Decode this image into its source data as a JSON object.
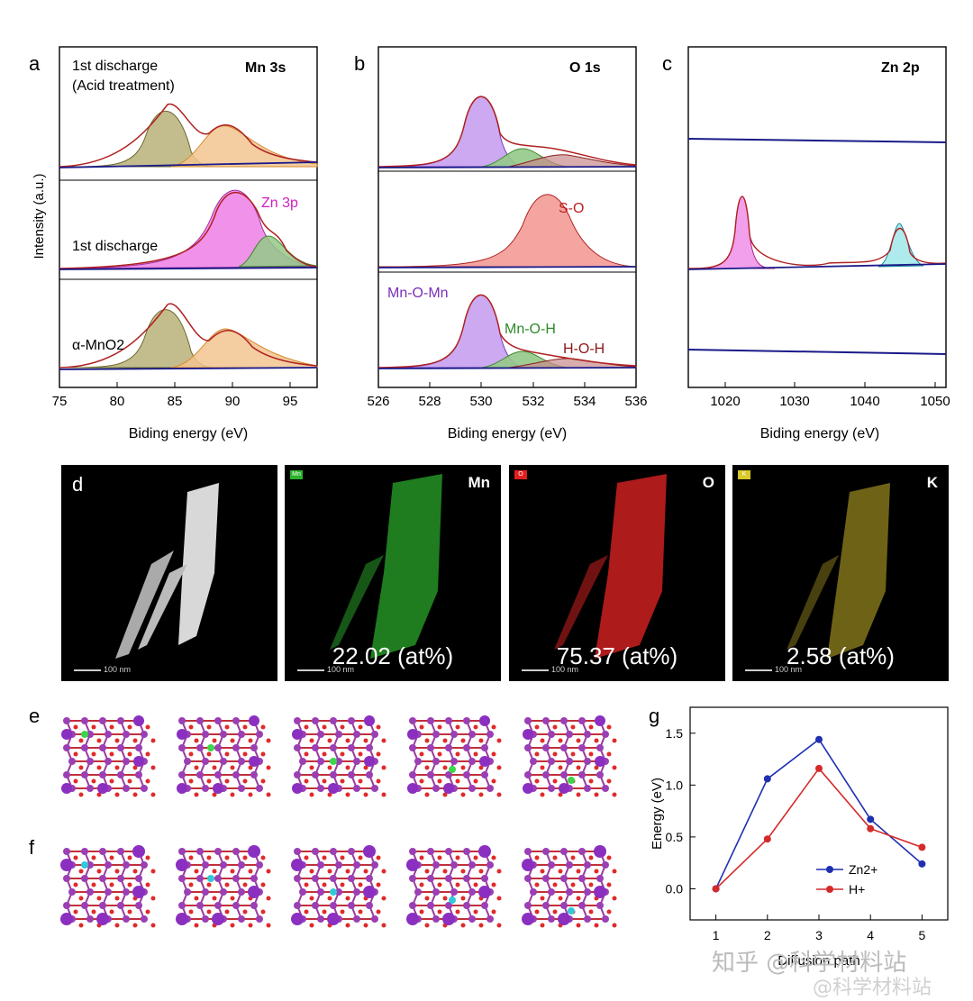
{
  "panels": {
    "a": {
      "letter": "a",
      "title": "Mn 3s",
      "ylabel": "Intensity (a.u.)",
      "xlabel": "Biding energy (eV)",
      "ticks": [
        "75",
        "80",
        "85",
        "90",
        "95"
      ],
      "labels": {
        "top_l1": "1st discharge",
        "top_l2": "(Acid treatment)",
        "mid": "1st discharge",
        "mid_peak": "Zn 3p",
        "bot": "α-MnO2"
      }
    },
    "b": {
      "letter": "b",
      "title": "O 1s",
      "xlabel": "Biding energy (eV)",
      "ticks": [
        "526",
        "528",
        "530",
        "532",
        "534",
        "536"
      ],
      "labels": {
        "so": "S-O",
        "mnomn": "Mn-O-Mn",
        "mnoh": "Mn-O-H",
        "hoh": "H-O-H"
      }
    },
    "c": {
      "letter": "c",
      "title": "Zn 2p",
      "xlabel": "Biding energy (eV)",
      "ticks": [
        "1020",
        "1030",
        "1040",
        "1050"
      ]
    },
    "d": {
      "letter": "d",
      "maps": [
        {
          "element": "",
          "tag": "",
          "value": "",
          "scale": "100 nm"
        },
        {
          "element": "Mn",
          "tag": "Mn",
          "value": "22.02 (at%)",
          "scale": "100 nm"
        },
        {
          "element": "O",
          "tag": "O",
          "value": "75.37 (at%)",
          "scale": "100 nm"
        },
        {
          "element": "K",
          "tag": "K",
          "value": "2.58 (at%)",
          "scale": "100 nm"
        }
      ]
    },
    "e": {
      "letter": "e"
    },
    "f": {
      "letter": "f"
    },
    "g": {
      "letter": "g",
      "ylabel": "Energy (eV)",
      "xlabel": "Diffusion path"
    }
  },
  "chart_data": {
    "type": "line",
    "x": [
      1,
      2,
      3,
      4,
      5
    ],
    "series": [
      {
        "name": "Zn2+",
        "values": [
          0.0,
          1.06,
          1.44,
          0.67,
          0.24
        ],
        "color": "#1f2fb0"
      },
      {
        "name": "H+",
        "values": [
          0.0,
          0.48,
          1.16,
          0.58,
          0.4
        ],
        "color": "#d42a2a"
      }
    ],
    "xlabel": "Diffusion path",
    "ylabel": "Energy (eV)",
    "xlim": [
      0.5,
      5.5
    ],
    "ylim": [
      -0.3,
      1.75
    ],
    "yticks": [
      "0.0",
      "0.5",
      "1.0",
      "1.5"
    ],
    "xticks": [
      "1",
      "2",
      "3",
      "4",
      "5"
    ],
    "grid": false,
    "legend": "bottom-right"
  },
  "watermark": {
    "line1": "知乎 @科学材料站",
    "line2": "@科学材料站"
  },
  "colors": {
    "olive": "#b9b27a",
    "orange": "#f2c48f",
    "magenta": "#ee7fe6",
    "purple": "#c6a0ee",
    "salmon": "#f39b96",
    "green": "#93c987",
    "spine": "#1a1a8a"
  }
}
